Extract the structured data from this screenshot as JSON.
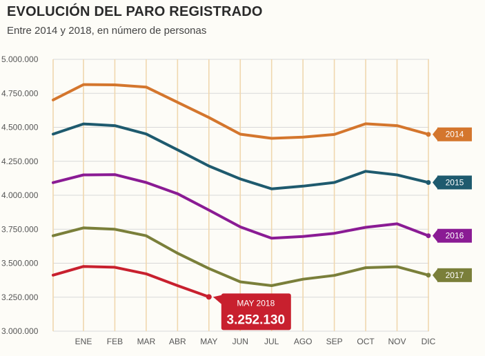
{
  "chart_data": {
    "type": "line",
    "title": "EVOLUCIÓN DEL PARO REGISTRADO",
    "subtitle": "Entre 2014 y 2018, en número de personas",
    "xlabel": "",
    "ylabel": "",
    "ylim": [
      3000000,
      5000000
    ],
    "yticks": [
      3000000,
      3250000,
      3500000,
      3750000,
      4000000,
      4250000,
      4500000,
      4750000,
      5000000
    ],
    "ytick_labels": [
      "3.000.000",
      "3.250.000",
      "3.500.000",
      "3.750.000",
      "4.000.000",
      "4.250.000",
      "4.500.000",
      "4.750.000",
      "5.000.000"
    ],
    "categories": [
      "ENE",
      "FEB",
      "MAR",
      "ABR",
      "MAY",
      "JUN",
      "JUL",
      "AGO",
      "SEP",
      "OCT",
      "NOV",
      "DIC"
    ],
    "grid": true,
    "series": [
      {
        "name": "2014",
        "color": "#d4762d",
        "start": 4701000,
        "values": [
          4814000,
          4812000,
          4796000,
          4684000,
          4572000,
          4449000,
          4419000,
          4428000,
          4447000,
          4526000,
          4512000,
          4448000
        ]
      },
      {
        "name": "2015",
        "color": "#1e5a6e",
        "start": 4450000,
        "values": [
          4525000,
          4512000,
          4451000,
          4334000,
          4215000,
          4120000,
          4047000,
          4067000,
          4094000,
          4176000,
          4150000,
          4094000
        ]
      },
      {
        "name": "2016",
        "color": "#8a1b94",
        "start": 4093000,
        "values": [
          4150000,
          4152000,
          4094000,
          4011000,
          3891000,
          3767000,
          3684000,
          3697000,
          3720000,
          3764000,
          3790000,
          3702000
        ]
      },
      {
        "name": "2017",
        "color": "#7a7f3a",
        "start": 3702000,
        "values": [
          3760000,
          3750000,
          3702000,
          3573000,
          3461000,
          3363000,
          3335000,
          3382000,
          3410000,
          3467000,
          3474000,
          3412000
        ]
      },
      {
        "name": "2018",
        "color": "#c8202e",
        "start": 3412000,
        "values": [
          3476000,
          3470000,
          3422000,
          3335000,
          3252130,
          null,
          null,
          null,
          null,
          null,
          null,
          null
        ]
      }
    ],
    "annotation": {
      "label": "MAY 2018",
      "value_text": "3.252.130",
      "color": "#c8202e"
    }
  }
}
